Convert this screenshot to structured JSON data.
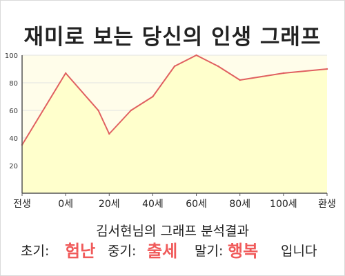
{
  "title": "재미로 보는 당신의 인생 그래프",
  "subtitle": "김서현님의 그래프 분석결과",
  "result": {
    "early_label": "초기:",
    "early_value": "험난",
    "mid_label": "중기:",
    "mid_value": "출세",
    "late_label": "말기:",
    "late_value": "행복",
    "suffix": "입니다"
  },
  "colors": {
    "line": "#e06060",
    "area": "#ffffcc",
    "plot_background": "#fffdea",
    "grid": "#e2e2e2",
    "highlight": "#f05a5a"
  },
  "chart_data": {
    "type": "area",
    "x_tick_labels": [
      "전생",
      "0세",
      "20세",
      "40세",
      "60세",
      "80세",
      "100세",
      "환생"
    ],
    "ylim": [
      0,
      100
    ],
    "y_ticks": [
      20,
      40,
      60,
      80,
      100
    ],
    "grid": true,
    "points": [
      {
        "x": "전생",
        "y": 35
      },
      {
        "x": "0세",
        "y": 87
      },
      {
        "x": "15세",
        "y": 60
      },
      {
        "x": "20세",
        "y": 43
      },
      {
        "x": "30세",
        "y": 60
      },
      {
        "x": "40세",
        "y": 70
      },
      {
        "x": "50세",
        "y": 92
      },
      {
        "x": "60세",
        "y": 100
      },
      {
        "x": "70세",
        "y": 92
      },
      {
        "x": "80세",
        "y": 82
      },
      {
        "x": "100세",
        "y": 87
      },
      {
        "x": "환생",
        "y": 90
      }
    ]
  }
}
